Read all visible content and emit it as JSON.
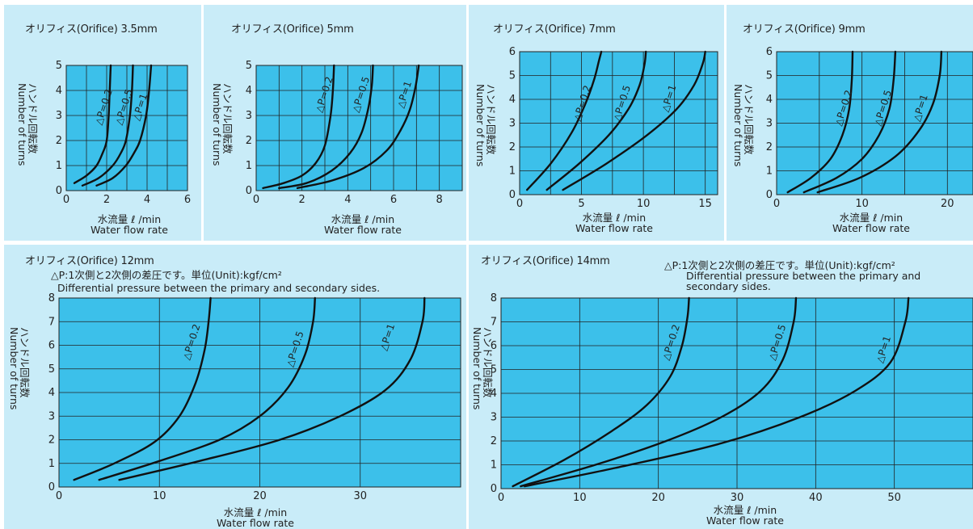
{
  "common": {
    "x_label_jp": "水流量 ℓ /min",
    "x_label_en": "Water flow rate",
    "y_label_jp": "ハンドル回転数",
    "y_label_en": "Number of turns",
    "note_jp": "△P:1次側と2次側の差圧です。単位(Unit):kgf/cm²",
    "note_en": "Differential pressure between the primary and secondary sides.",
    "note_en_line1": "Differential pressure between the primary and",
    "note_en_line2": "secondary sides.",
    "colors": {
      "panel_bg": "#c9ecf8",
      "plot_bg": "#3cc0ea",
      "line": "#111111"
    }
  },
  "chart_data": [
    {
      "type": "line",
      "title": "オリフィス(Orifice) 3.5mm",
      "xlim": [
        0,
        6
      ],
      "ylim": [
        0,
        5
      ],
      "x_ticks": [
        0,
        2,
        4,
        6
      ],
      "y_ticks": [
        0,
        1,
        2,
        3,
        4,
        5
      ],
      "grid_x": 1,
      "grid_y": 1,
      "series": [
        {
          "name": "△P=0.2",
          "points": [
            [
              0.4,
              0.3
            ],
            [
              1.0,
              0.6
            ],
            [
              1.5,
              1.0
            ],
            [
              1.8,
              1.5
            ],
            [
              2.0,
              2.0
            ],
            [
              2.1,
              3.0
            ],
            [
              2.15,
              4.0
            ],
            [
              2.2,
              5.0
            ]
          ]
        },
        {
          "name": "△P=0.5",
          "points": [
            [
              0.8,
              0.2
            ],
            [
              1.6,
              0.5
            ],
            [
              2.3,
              1.0
            ],
            [
              2.7,
              1.5
            ],
            [
              2.95,
              2.0
            ],
            [
              3.15,
              3.0
            ],
            [
              3.25,
              4.0
            ],
            [
              3.3,
              5.0
            ]
          ]
        },
        {
          "name": "△P=1",
          "points": [
            [
              1.5,
              0.2
            ],
            [
              2.3,
              0.5
            ],
            [
              2.95,
              1.0
            ],
            [
              3.35,
              1.5
            ],
            [
              3.65,
              2.0
            ],
            [
              3.95,
              3.0
            ],
            [
              4.1,
              4.0
            ],
            [
              4.2,
              5.0
            ]
          ]
        }
      ]
    },
    {
      "type": "line",
      "title": "オリフィス(Orifice) 5mm",
      "xlim": [
        0,
        9
      ],
      "ylim": [
        0,
        5
      ],
      "x_ticks": [
        0,
        2,
        4,
        6,
        8
      ],
      "y_ticks": [
        0,
        1,
        2,
        3,
        4,
        5
      ],
      "grid_x": 1,
      "grid_y": 1,
      "series": [
        {
          "name": "△P=0.2",
          "points": [
            [
              0.3,
              0.1
            ],
            [
              1.2,
              0.3
            ],
            [
              2.0,
              0.6
            ],
            [
              2.6,
              1.1
            ],
            [
              3.0,
              1.8
            ],
            [
              3.25,
              3.0
            ],
            [
              3.35,
              4.0
            ],
            [
              3.4,
              5.0
            ]
          ]
        },
        {
          "name": "△P=0.5",
          "points": [
            [
              1.0,
              0.1
            ],
            [
              2.2,
              0.3
            ],
            [
              3.3,
              0.8
            ],
            [
              4.1,
              1.5
            ],
            [
              4.6,
              2.3
            ],
            [
              4.9,
              3.3
            ],
            [
              5.05,
              4.2
            ],
            [
              5.1,
              5.0
            ]
          ]
        },
        {
          "name": "△P=1",
          "points": [
            [
              1.8,
              0.1
            ],
            [
              3.3,
              0.4
            ],
            [
              4.7,
              0.9
            ],
            [
              5.7,
              1.6
            ],
            [
              6.3,
              2.4
            ],
            [
              6.7,
              3.2
            ],
            [
              6.95,
              4.1
            ],
            [
              7.1,
              5.0
            ]
          ]
        }
      ]
    },
    {
      "type": "line",
      "title": "オリフィス(Orifice) 7mm",
      "xlim": [
        0,
        16
      ],
      "ylim": [
        0,
        6
      ],
      "x_ticks": [
        0,
        5,
        10,
        15
      ],
      "y_ticks": [
        0,
        1,
        2,
        3,
        4,
        5,
        6
      ],
      "grid_x": 2.5,
      "grid_y": 1,
      "series": [
        {
          "name": "△P=0.2",
          "points": [
            [
              0.6,
              0.2
            ],
            [
              2.5,
              1.3
            ],
            [
              4.2,
              2.6
            ],
            [
              5.3,
              3.8
            ],
            [
              6.0,
              4.8
            ],
            [
              6.4,
              5.6
            ],
            [
              6.6,
              6.0
            ]
          ]
        },
        {
          "name": "△P=0.5",
          "points": [
            [
              2.2,
              0.2
            ],
            [
              4.8,
              1.3
            ],
            [
              7.2,
              2.5
            ],
            [
              8.8,
              3.6
            ],
            [
              9.7,
              4.6
            ],
            [
              10.1,
              5.5
            ],
            [
              10.2,
              6.0
            ]
          ]
        },
        {
          "name": "△P=1",
          "points": [
            [
              3.5,
              0.2
            ],
            [
              7.0,
              1.3
            ],
            [
              10.3,
              2.5
            ],
            [
              12.7,
              3.6
            ],
            [
              14.1,
              4.6
            ],
            [
              14.8,
              5.5
            ],
            [
              15.0,
              6.0
            ]
          ]
        }
      ]
    },
    {
      "type": "line",
      "title": "オリフィス(Orifice) 9mm",
      "xlim": [
        0,
        23
      ],
      "ylim": [
        0,
        6
      ],
      "x_ticks": [
        0,
        10,
        20
      ],
      "y_ticks": [
        0,
        1,
        2,
        3,
        4,
        5,
        6
      ],
      "grid_x": 5,
      "grid_y": 1,
      "series": [
        {
          "name": "△P=0.2",
          "points": [
            [
              1.3,
              0.1
            ],
            [
              4.0,
              0.7
            ],
            [
              6.3,
              1.5
            ],
            [
              7.7,
              2.5
            ],
            [
              8.5,
              3.6
            ],
            [
              8.8,
              4.8
            ],
            [
              8.9,
              6.0
            ]
          ]
        },
        {
          "name": "△P=0.5",
          "points": [
            [
              3.2,
              0.1
            ],
            [
              7.0,
              0.7
            ],
            [
              10.0,
              1.5
            ],
            [
              12.0,
              2.5
            ],
            [
              13.2,
              3.6
            ],
            [
              13.7,
              4.8
            ],
            [
              13.9,
              6.0
            ]
          ]
        },
        {
          "name": "△P=1",
          "points": [
            [
              4.8,
              0.1
            ],
            [
              9.7,
              0.7
            ],
            [
              13.9,
              1.6
            ],
            [
              16.7,
              2.7
            ],
            [
              18.3,
              3.8
            ],
            [
              19.1,
              5.0
            ],
            [
              19.3,
              6.0
            ]
          ]
        }
      ]
    },
    {
      "type": "line",
      "title": "オリフィス(Orifice) 12mm",
      "xlim": [
        0,
        40
      ],
      "ylim": [
        0,
        8
      ],
      "x_ticks": [
        0,
        10,
        20,
        30
      ],
      "y_ticks": [
        0,
        1,
        2,
        3,
        4,
        5,
        6,
        7,
        8
      ],
      "grid_x": 10,
      "grid_y": 1,
      "series": [
        {
          "name": "△P=0.2",
          "points": [
            [
              1.5,
              0.3
            ],
            [
              5.5,
              1.0
            ],
            [
              9.5,
              1.9
            ],
            [
              12.0,
              3.0
            ],
            [
              13.6,
              4.4
            ],
            [
              14.5,
              5.8
            ],
            [
              14.9,
              7.0
            ],
            [
              15.1,
              8.0
            ]
          ]
        },
        {
          "name": "△P=0.5",
          "points": [
            [
              4.0,
              0.3
            ],
            [
              10.0,
              1.1
            ],
            [
              16.0,
              2.0
            ],
            [
              20.0,
              3.0
            ],
            [
              22.8,
              4.2
            ],
            [
              24.5,
              5.6
            ],
            [
              25.3,
              7.0
            ],
            [
              25.5,
              8.0
            ]
          ]
        },
        {
          "name": "△P=1",
          "points": [
            [
              6.0,
              0.3
            ],
            [
              14.0,
              1.1
            ],
            [
              22.0,
              2.0
            ],
            [
              28.0,
              3.0
            ],
            [
              32.5,
              4.1
            ],
            [
              35.0,
              5.4
            ],
            [
              36.2,
              7.0
            ],
            [
              36.4,
              8.0
            ]
          ]
        }
      ]
    },
    {
      "type": "line",
      "title": "オリフィス(Orifice) 14mm",
      "xlim": [
        0,
        60
      ],
      "ylim": [
        0,
        8
      ],
      "x_ticks": [
        0,
        10,
        20,
        30,
        40,
        50
      ],
      "y_ticks": [
        0,
        1,
        2,
        3,
        4,
        5,
        6,
        7,
        8
      ],
      "grid_x": 10,
      "grid_y": 1,
      "series": [
        {
          "name": "△P=0.2",
          "points": [
            [
              1.5,
              0.1
            ],
            [
              8.0,
              1.2
            ],
            [
              14.0,
              2.4
            ],
            [
              18.5,
              3.5
            ],
            [
              21.5,
              4.7
            ],
            [
              23.0,
              6.0
            ],
            [
              23.7,
              7.2
            ],
            [
              23.9,
              8.0
            ]
          ]
        },
        {
          "name": "△P=0.5",
          "points": [
            [
              2.5,
              0.1
            ],
            [
              12.0,
              1.0
            ],
            [
              21.0,
              2.0
            ],
            [
              28.0,
              3.0
            ],
            [
              33.0,
              4.1
            ],
            [
              35.8,
              5.4
            ],
            [
              37.2,
              7.0
            ],
            [
              37.5,
              8.0
            ]
          ]
        },
        {
          "name": "△P=1",
          "points": [
            [
              3.0,
              0.1
            ],
            [
              15.0,
              0.9
            ],
            [
              28.0,
              1.9
            ],
            [
              38.0,
              3.0
            ],
            [
              45.0,
              4.1
            ],
            [
              49.5,
              5.3
            ],
            [
              51.4,
              7.0
            ],
            [
              51.8,
              8.0
            ]
          ]
        }
      ]
    }
  ]
}
